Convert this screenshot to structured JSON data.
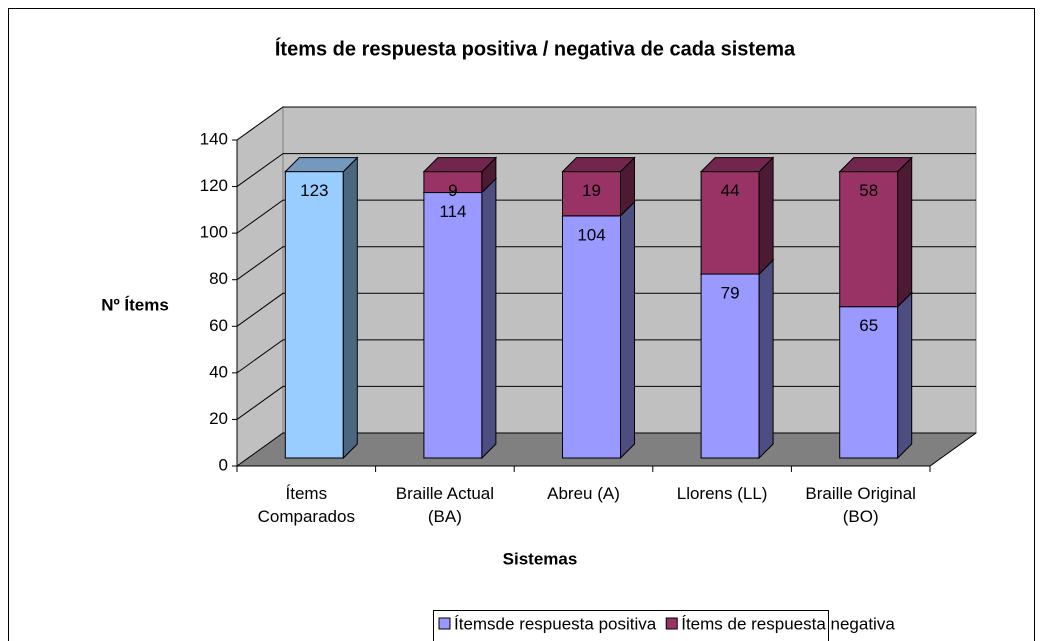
{
  "chart_data": {
    "type": "bar3d_stacked",
    "title": "Ítems de respuesta positiva / negativa de cada sistema",
    "ylabel": "Nº Ítems",
    "xlabel": "Sistemas",
    "categories": [
      "Ítems Comparados",
      "Braille Actual (BA)",
      "Abreu (A)",
      "Llorens (LL)",
      "Braille Original (BO)"
    ],
    "series": [
      {
        "name": "Ítemsde respuesta positiva",
        "color": "#9999ff",
        "colors": [
          "#99ccff",
          "#9999ff",
          "#9999ff",
          "#9999ff",
          "#9999ff"
        ],
        "values": [
          123,
          114,
          104,
          79,
          65
        ]
      },
      {
        "name": "Ítems de respuesta negativa",
        "color": "#993366",
        "values": [
          null,
          9,
          19,
          44,
          58
        ]
      }
    ],
    "ylim": [
      0,
      140
    ],
    "yticks": [
      0,
      20,
      40,
      60,
      80,
      100,
      120,
      140
    ],
    "grid": true,
    "legend": "bottom"
  }
}
